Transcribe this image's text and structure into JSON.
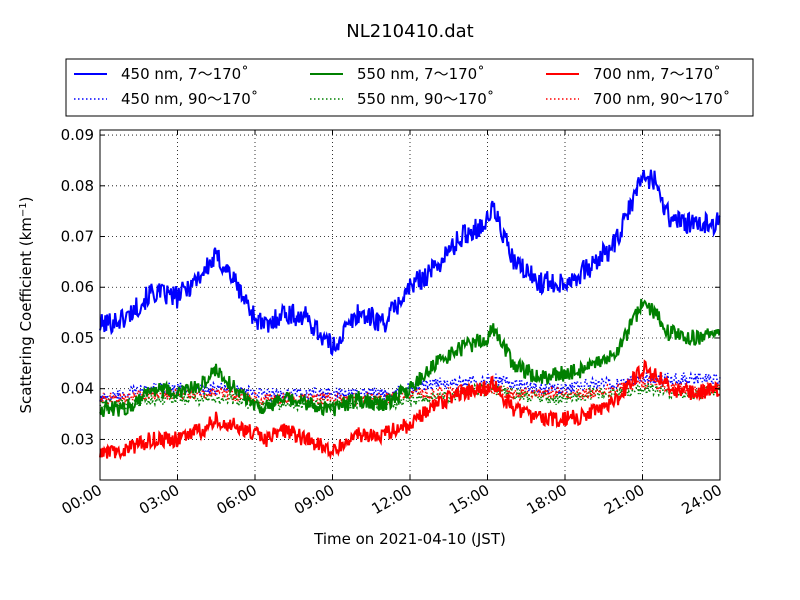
{
  "chart_data": {
    "type": "line",
    "title": "NL210410.dat",
    "xlabel": "Time on 2021-04-10 (JST)",
    "ylabel": "Scattering Coefficient (km",
    "ylabel_sup": "−1",
    "ylabel_close": ")",
    "xlim": [
      "2021-04-10 00:00",
      "2021-04-11 00:00"
    ],
    "ylim": [
      0.022,
      0.091
    ],
    "grid": true,
    "legend_position": "top",
    "x_ticks": [
      "00:00",
      "03:00",
      "06:00",
      "09:00",
      "12:00",
      "15:00",
      "18:00",
      "21:00",
      "24:00"
    ],
    "y_ticks": [
      "0.03",
      "0.04",
      "0.05",
      "0.06",
      "0.07",
      "0.08",
      "0.09"
    ],
    "x_hours": [
      0,
      1,
      2,
      3,
      4,
      4.5,
      5,
      6,
      6.5,
      7,
      8,
      9,
      10,
      11,
      12,
      13,
      14,
      15,
      15.2,
      16,
      17,
      18,
      19,
      20,
      21,
      21.5,
      22,
      23,
      24
    ],
    "series": [
      {
        "name": "450 nm, 7～170˚",
        "color": "#0000ff",
        "style": "solid",
        "values": [
          0.0525,
          0.054,
          0.059,
          0.058,
          0.063,
          0.066,
          0.063,
          0.054,
          0.052,
          0.055,
          0.054,
          0.048,
          0.055,
          0.053,
          0.06,
          0.064,
          0.07,
          0.073,
          0.076,
          0.065,
          0.061,
          0.061,
          0.064,
          0.069,
          0.082,
          0.081,
          0.074,
          0.072,
          0.073
        ]
      },
      {
        "name": "450 nm, 90～170˚",
        "color": "#0000ff",
        "style": "dotted",
        "values": [
          0.038,
          0.039,
          0.04,
          0.04,
          0.04,
          0.04,
          0.04,
          0.039,
          0.039,
          0.039,
          0.039,
          0.039,
          0.039,
          0.039,
          0.04,
          0.041,
          0.041,
          0.042,
          0.042,
          0.041,
          0.04,
          0.04,
          0.041,
          0.041,
          0.042,
          0.042,
          0.042,
          0.042,
          0.042
        ]
      },
      {
        "name": "550 nm, 7～170˚",
        "color": "#008000",
        "style": "solid",
        "values": [
          0.036,
          0.036,
          0.04,
          0.039,
          0.041,
          0.044,
          0.041,
          0.037,
          0.036,
          0.038,
          0.037,
          0.036,
          0.038,
          0.037,
          0.04,
          0.045,
          0.048,
          0.05,
          0.052,
          0.045,
          0.042,
          0.043,
          0.044,
          0.047,
          0.057,
          0.055,
          0.051,
          0.05,
          0.051
        ]
      },
      {
        "name": "550 nm, 90～170˚",
        "color": "#008000",
        "style": "dotted",
        "values": [
          0.037,
          0.037,
          0.038,
          0.038,
          0.038,
          0.038,
          0.038,
          0.037,
          0.037,
          0.037,
          0.037,
          0.037,
          0.037,
          0.037,
          0.038,
          0.038,
          0.039,
          0.04,
          0.04,
          0.039,
          0.038,
          0.038,
          0.039,
          0.039,
          0.04,
          0.04,
          0.039,
          0.039,
          0.04
        ]
      },
      {
        "name": "700 nm, 7～170˚",
        "color": "#ff0000",
        "style": "solid",
        "values": [
          0.027,
          0.028,
          0.03,
          0.03,
          0.032,
          0.034,
          0.033,
          0.031,
          0.03,
          0.032,
          0.03,
          0.028,
          0.031,
          0.031,
          0.033,
          0.037,
          0.039,
          0.04,
          0.041,
          0.036,
          0.034,
          0.034,
          0.035,
          0.038,
          0.044,
          0.043,
          0.04,
          0.039,
          0.04
        ]
      },
      {
        "name": "700 nm, 90～170˚",
        "color": "#ff0000",
        "style": "dotted",
        "values": [
          0.038,
          0.038,
          0.039,
          0.039,
          0.039,
          0.039,
          0.039,
          0.038,
          0.038,
          0.038,
          0.038,
          0.038,
          0.038,
          0.038,
          0.039,
          0.039,
          0.04,
          0.04,
          0.04,
          0.039,
          0.039,
          0.039,
          0.039,
          0.04,
          0.041,
          0.041,
          0.04,
          0.04,
          0.04
        ]
      }
    ]
  }
}
